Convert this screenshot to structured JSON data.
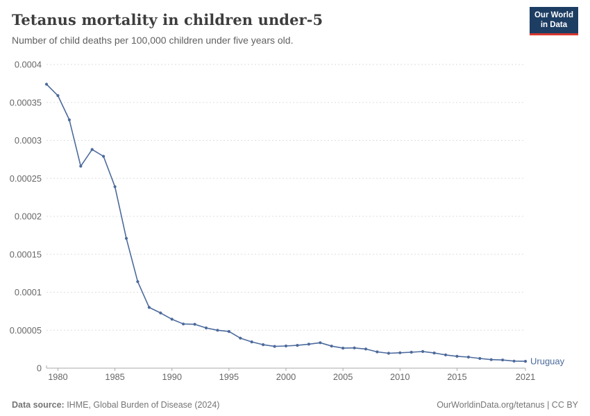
{
  "header": {
    "title": "Tetanus mortality in children under-5",
    "subtitle": "Number of child deaths per 100,000 children under five years old."
  },
  "logo": {
    "line1": "Our World",
    "line2": "in Data"
  },
  "chart_data": {
    "type": "line",
    "title": "Tetanus mortality in children under-5",
    "xlabel": "",
    "ylabel": "",
    "xlim": [
      1979,
      2021
    ],
    "ylim": [
      0,
      0.0004
    ],
    "grid": "horizontal-dashed",
    "legend_position": "end-of-line-label",
    "x_ticks": [
      1980,
      1985,
      1990,
      1995,
      2000,
      2005,
      2010,
      2015,
      2021
    ],
    "x_tick_labels": [
      "1980",
      "1985",
      "1990",
      "1995",
      "2000",
      "2005",
      "2010",
      "2015",
      "2021"
    ],
    "y_ticks": [
      0,
      5e-05,
      0.0001,
      0.00015,
      0.0002,
      0.00025,
      0.0003,
      0.00035,
      0.0004
    ],
    "y_tick_labels": [
      "0",
      "0.00005",
      "0.0001",
      "0.00015",
      "0.0002",
      "0.00025",
      "0.0003",
      "0.00035",
      "0.0004"
    ],
    "series": [
      {
        "name": "Uruguay",
        "color": "#4C6A9C",
        "x": [
          1979,
          1980,
          1981,
          1982,
          1983,
          1984,
          1985,
          1986,
          1987,
          1988,
          1989,
          1990,
          1991,
          1992,
          1993,
          1994,
          1995,
          1996,
          1997,
          1998,
          1999,
          2000,
          2001,
          2002,
          2003,
          2004,
          2005,
          2006,
          2007,
          2008,
          2009,
          2010,
          2011,
          2012,
          2013,
          2014,
          2015,
          2016,
          2017,
          2018,
          2019,
          2020,
          2021
        ],
        "values": [
          0.000374,
          0.000359,
          0.000327,
          0.000266,
          0.000288,
          0.000279,
          0.000239,
          0.000171,
          0.000114,
          8e-05,
          7.27e-05,
          6.45e-05,
          5.82e-05,
          5.78e-05,
          5.3e-05,
          5e-05,
          4.83e-05,
          3.95e-05,
          3.46e-05,
          3.1e-05,
          2.87e-05,
          2.92e-05,
          3e-05,
          3.16e-05,
          3.35e-05,
          2.9e-05,
          2.64e-05,
          2.67e-05,
          2.52e-05,
          2.15e-05,
          1.96e-05,
          2.03e-05,
          2.1e-05,
          2.19e-05,
          2e-05,
          1.74e-05,
          1.56e-05,
          1.46e-05,
          1.28e-05,
          1.12e-05,
          1.08e-05,
          9.3e-06,
          9e-06
        ]
      }
    ]
  },
  "footer": {
    "source_label": "Data source:",
    "source_text": " IHME, Global Burden of Disease (2024)",
    "right_text": "OurWorldinData.org/tetanus | CC BY"
  },
  "colors": {
    "line": "#4C6A9C",
    "grid": "#dddddd",
    "axis": "#a8a8a8",
    "tick_label": "#666666",
    "title": "#3d3d3d",
    "subtitle": "#5f5f5f",
    "footer": "#757575",
    "logo_bg": "#1d3d63",
    "logo_bar": "#d7382e"
  }
}
